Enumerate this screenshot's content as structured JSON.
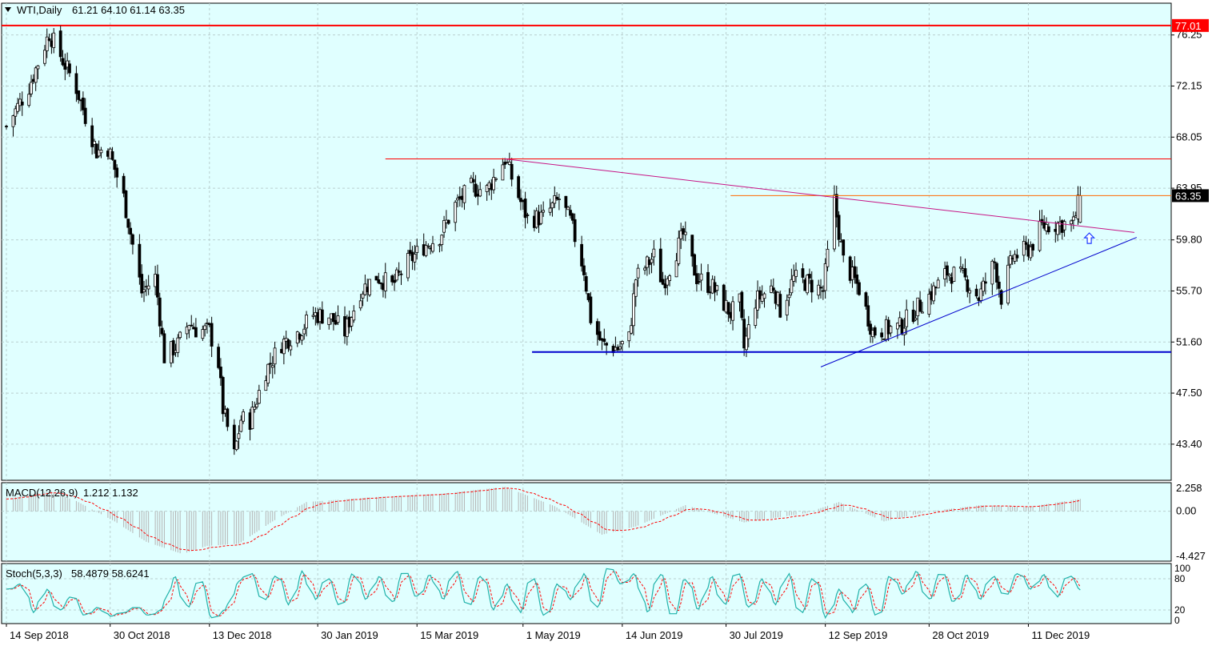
{
  "header": {
    "symbol": "WTI,Daily",
    "ohlc": "61.21 64.10 61.14 63.35"
  },
  "colors": {
    "background": "#e0ffff",
    "frame": "#000000",
    "grid": "#b9cfcf",
    "candle_up": "#ffffff",
    "candle_down": "#000000",
    "support_line": "#0000cd",
    "trend_line": "#0000cd",
    "resistance_line": "#c71585",
    "level_line": "#ff0000",
    "macd_hist": "#b4b4b4",
    "macd_signal": "#ff0000",
    "stoch_main": "#20b2aa",
    "stoch_signal": "#ff0000",
    "price_label_bg": "#000000",
    "level_label_bg": "#ff0000",
    "arrow": "#1e3cff"
  },
  "annotations": {
    "arrow_icon": "up-arrow-icon"
  },
  "chart_data": [
    {
      "type": "candlestick",
      "name": "WTI,Daily",
      "ylim": [
        40.5,
        78.8
      ],
      "y_ticks": [
        "76.25",
        "72.15",
        "68.05",
        "63.95",
        "59.80",
        "55.70",
        "51.60",
        "47.50",
        "43.40"
      ],
      "x_ticks": [
        "14 Sep 2018",
        "30 Oct 2018",
        "13 Dec 2018",
        "30 Jan 2019",
        "15 Mar 2019",
        "1 May 2019",
        "14 Jun 2019",
        "30 Jul 2019",
        "12 Sep 2019",
        "28 Oct 2019",
        "11 Dec 2019"
      ],
      "last_ohlc": {
        "open": 61.21,
        "high": 64.1,
        "low": 61.14,
        "close": 63.35
      },
      "close_path": [
        {
          "date": "2018-09-14",
          "close": 68.9
        },
        {
          "date": "2018-09-24",
          "close": 72.1
        },
        {
          "date": "2018-10-03",
          "close": 76.4
        },
        {
          "date": "2018-10-08",
          "close": 74.6
        },
        {
          "date": "2018-10-15",
          "close": 72.0
        },
        {
          "date": "2018-10-24",
          "close": 66.9
        },
        {
          "date": "2018-10-29",
          "close": 67.2
        },
        {
          "date": "2018-11-05",
          "close": 63.2
        },
        {
          "date": "2018-11-13",
          "close": 55.6
        },
        {
          "date": "2018-11-19",
          "close": 56.8
        },
        {
          "date": "2018-11-23",
          "close": 50.4
        },
        {
          "date": "2018-11-29",
          "close": 51.4
        },
        {
          "date": "2018-12-04",
          "close": 53.2
        },
        {
          "date": "2018-12-07",
          "close": 52.6
        },
        {
          "date": "2018-12-13",
          "close": 52.5
        },
        {
          "date": "2018-12-17",
          "close": 49.9
        },
        {
          "date": "2018-12-19",
          "close": 46.2
        },
        {
          "date": "2018-12-24",
          "close": 42.5
        },
        {
          "date": "2018-12-27",
          "close": 45.4
        },
        {
          "date": "2018-12-31",
          "close": 45.3
        },
        {
          "date": "2019-01-07",
          "close": 49.3
        },
        {
          "date": "2019-01-14",
          "close": 51.5
        },
        {
          "date": "2019-01-22",
          "close": 52.5
        },
        {
          "date": "2019-01-28",
          "close": 53.8
        },
        {
          "date": "2019-02-04",
          "close": 53.7
        },
        {
          "date": "2019-02-11",
          "close": 52.4
        },
        {
          "date": "2019-02-18",
          "close": 55.7
        },
        {
          "date": "2019-02-25",
          "close": 56.9
        },
        {
          "date": "2019-03-04",
          "close": 56.1
        },
        {
          "date": "2019-03-11",
          "close": 58.0
        },
        {
          "date": "2019-03-18",
          "close": 59.3
        },
        {
          "date": "2019-03-25",
          "close": 60.1
        },
        {
          "date": "2019-04-01",
          "close": 62.6
        },
        {
          "date": "2019-04-08",
          "close": 64.0
        },
        {
          "date": "2019-04-15",
          "close": 63.8
        },
        {
          "date": "2019-04-23",
          "close": 66.3
        },
        {
          "date": "2019-04-29",
          "close": 63.3
        },
        {
          "date": "2019-05-03",
          "close": 61.5
        },
        {
          "date": "2019-05-10",
          "close": 61.6
        },
        {
          "date": "2019-05-17",
          "close": 63.1
        },
        {
          "date": "2019-05-22",
          "close": 61.3
        },
        {
          "date": "2019-05-28",
          "close": 57.4
        },
        {
          "date": "2019-05-31",
          "close": 53.5
        },
        {
          "date": "2019-06-05",
          "close": 51.4
        },
        {
          "date": "2019-06-12",
          "close": 51.1
        },
        {
          "date": "2019-06-17",
          "close": 51.9
        },
        {
          "date": "2019-06-20",
          "close": 56.7
        },
        {
          "date": "2019-06-28",
          "close": 58.5
        },
        {
          "date": "2019-07-02",
          "close": 56.3
        },
        {
          "date": "2019-07-11",
          "close": 60.2
        },
        {
          "date": "2019-07-17",
          "close": 56.8
        },
        {
          "date": "2019-07-24",
          "close": 56.0
        },
        {
          "date": "2019-08-01",
          "close": 53.9
        },
        {
          "date": "2019-08-05",
          "close": 54.7
        },
        {
          "date": "2019-08-07",
          "close": 51.1
        },
        {
          "date": "2019-08-12",
          "close": 54.9
        },
        {
          "date": "2019-08-20",
          "close": 56.1
        },
        {
          "date": "2019-08-23",
          "close": 54.2
        },
        {
          "date": "2019-08-29",
          "close": 56.7
        },
        {
          "date": "2019-09-05",
          "close": 56.3
        },
        {
          "date": "2019-09-11",
          "close": 55.7
        },
        {
          "date": "2019-09-16",
          "close": 62.9
        },
        {
          "date": "2019-09-20",
          "close": 58.1
        },
        {
          "date": "2019-09-27",
          "close": 55.9
        },
        {
          "date": "2019-10-03",
          "close": 52.4
        },
        {
          "date": "2019-10-08",
          "close": 52.6
        },
        {
          "date": "2019-10-15",
          "close": 52.8
        },
        {
          "date": "2019-10-22",
          "close": 54.2
        },
        {
          "date": "2019-10-29",
          "close": 55.5
        },
        {
          "date": "2019-11-05",
          "close": 57.2
        },
        {
          "date": "2019-11-12",
          "close": 56.8
        },
        {
          "date": "2019-11-19",
          "close": 55.2
        },
        {
          "date": "2019-11-26",
          "close": 58.0
        },
        {
          "date": "2019-11-29",
          "close": 55.2
        },
        {
          "date": "2019-12-04",
          "close": 58.4
        },
        {
          "date": "2019-12-12",
          "close": 59.2
        },
        {
          "date": "2019-12-17",
          "close": 60.9
        },
        {
          "date": "2019-12-24",
          "close": 61.1
        },
        {
          "date": "2019-12-31",
          "close": 61.1
        },
        {
          "date": "2020-01-03",
          "close": 63.35
        }
      ],
      "price_labels": {
        "last": "63.35",
        "level": "77.01"
      },
      "lines": [
        {
          "name": "level-77",
          "kind": "horizontal",
          "value": 77.01,
          "from": "2018-09-14",
          "to": "chart-end"
        },
        {
          "name": "resistance-66",
          "kind": "horizontal",
          "value": 66.3,
          "from": "2019-03-01",
          "to": "chart-end"
        },
        {
          "name": "resistance-63",
          "kind": "horizontal",
          "value": 63.35,
          "from": "2019-08-01",
          "to": "chart-end"
        },
        {
          "name": "support-50",
          "kind": "horizontal",
          "value": 50.8,
          "from": "2019-05-05",
          "to": "chart-end"
        },
        {
          "name": "descending-trendline",
          "kind": "segment",
          "p1": {
            "date": "2019-04-23",
            "value": 66.3
          },
          "p2": {
            "date": "2020-01-27",
            "value": 60.4
          }
        },
        {
          "name": "ascending-trendline",
          "kind": "segment",
          "p1": {
            "date": "2019-09-10",
            "value": 49.6
          },
          "p2": {
            "date": "2020-01-28",
            "value": 60.0
          }
        }
      ]
    },
    {
      "type": "histogram+line",
      "name": "MACD(12,26,9)",
      "values_text": "1.212 1.132",
      "ylim": [
        -4.9,
        2.8
      ],
      "y_ticks": [
        "2.258",
        "0.00",
        "-4.427"
      ],
      "macd_path": [
        {
          "date": "2018-09-14",
          "value": 1.2
        },
        {
          "date": "2018-10-03",
          "value": 2.0
        },
        {
          "date": "2018-10-15",
          "value": 1.0
        },
        {
          "date": "2018-11-01",
          "value": -1.0
        },
        {
          "date": "2018-11-15",
          "value": -3.0
        },
        {
          "date": "2018-12-01",
          "value": -4.2
        },
        {
          "date": "2018-12-12",
          "value": -3.4
        },
        {
          "date": "2018-12-26",
          "value": -3.2
        },
        {
          "date": "2019-01-10",
          "value": -1.0
        },
        {
          "date": "2019-01-25",
          "value": 0.9
        },
        {
          "date": "2019-02-25",
          "value": 1.4
        },
        {
          "date": "2019-03-25",
          "value": 1.7
        },
        {
          "date": "2019-04-23",
          "value": 2.4
        },
        {
          "date": "2019-05-15",
          "value": 0.5
        },
        {
          "date": "2019-06-05",
          "value": -2.3
        },
        {
          "date": "2019-06-20",
          "value": -1.5
        },
        {
          "date": "2019-07-12",
          "value": 0.6
        },
        {
          "date": "2019-08-07",
          "value": -1.1
        },
        {
          "date": "2019-09-03",
          "value": -0.2
        },
        {
          "date": "2019-09-18",
          "value": 0.9
        },
        {
          "date": "2019-10-08",
          "value": -1.0
        },
        {
          "date": "2019-10-28",
          "value": 0.0
        },
        {
          "date": "2019-11-20",
          "value": 0.6
        },
        {
          "date": "2019-12-10",
          "value": 0.4
        },
        {
          "date": "2020-01-03",
          "value": 1.212
        }
      ],
      "signal_last": 1.132
    },
    {
      "type": "line",
      "name": "Stoch(5,3,3)",
      "values_text": "58.4879 58.6241",
      "ylim": [
        0,
        100
      ],
      "y_ticks": [
        "100",
        "80",
        "20",
        "0"
      ],
      "swings": [
        60,
        70,
        15,
        60,
        20,
        45,
        10,
        25,
        8,
        15,
        25,
        10,
        20,
        85,
        25,
        75,
        5,
        20,
        75,
        90,
        40,
        85,
        30,
        95,
        40,
        80,
        30,
        90,
        40,
        85,
        35,
        92,
        45,
        88,
        40,
        95,
        30,
        85,
        20,
        70,
        15,
        80,
        10,
        70,
        40,
        90,
        25,
        100,
        70,
        90,
        15,
        90,
        10,
        80,
        20,
        85,
        30,
        90,
        25,
        80,
        30,
        90,
        15,
        80,
        5,
        60,
        15,
        70,
        10,
        85,
        50,
        95,
        40,
        90,
        35,
        88,
        40,
        85,
        50,
        90,
        60,
        88,
        45,
        85,
        58.49
      ],
      "signal_last": 58.62
    }
  ]
}
